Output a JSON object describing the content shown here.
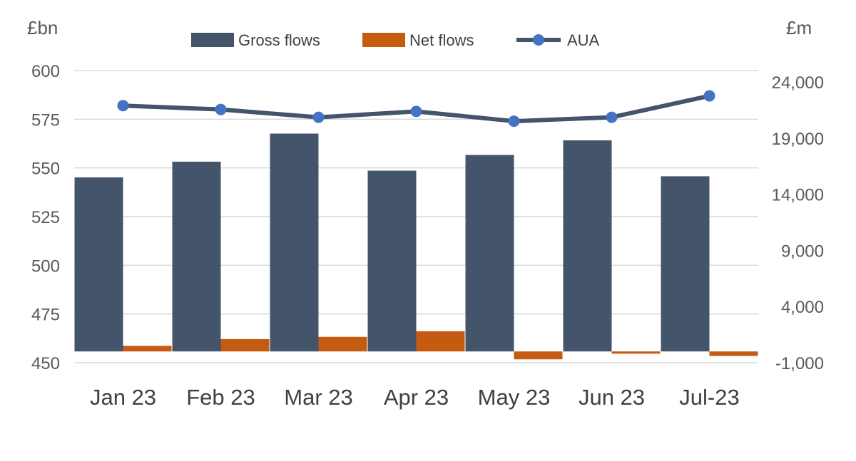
{
  "chart_data": {
    "type": "bar",
    "categories": [
      "Jan 23",
      "Feb 23",
      "Mar 23",
      "Apr 23",
      "May 23",
      "Jun 23",
      "Jul-23"
    ],
    "series": [
      {
        "name": "Gross flows",
        "type": "bar",
        "axis": "right",
        "color": "#44546A",
        "values": [
          15500,
          16900,
          19400,
          16100,
          17500,
          18800,
          15600
        ]
      },
      {
        "name": "Net flows",
        "type": "bar",
        "axis": "right",
        "color": "#C55A11",
        "values": [
          500,
          1100,
          1300,
          1800,
          -700,
          -200,
          -400
        ]
      },
      {
        "name": "AUA",
        "type": "line",
        "axis": "left",
        "line_color": "#44546A",
        "marker_color": "#4472C4",
        "values": [
          582,
          580,
          576,
          579,
          574,
          576,
          587
        ]
      }
    ],
    "y_left": {
      "label": "£bn",
      "ylim": [
        450,
        600
      ],
      "ticks": [
        "450",
        "475",
        "500",
        "525",
        "550",
        "575",
        "600"
      ]
    },
    "y_right": {
      "label": "£m",
      "ylim": [
        -1000,
        24000
      ],
      "ticks": [
        "-1,000",
        "4,000",
        "9,000",
        "14,000",
        "19,000",
        "24,000"
      ]
    },
    "legend": {
      "position": "top",
      "entries": [
        "Gross flows",
        "Net flows",
        "AUA"
      ]
    },
    "grid": true
  }
}
